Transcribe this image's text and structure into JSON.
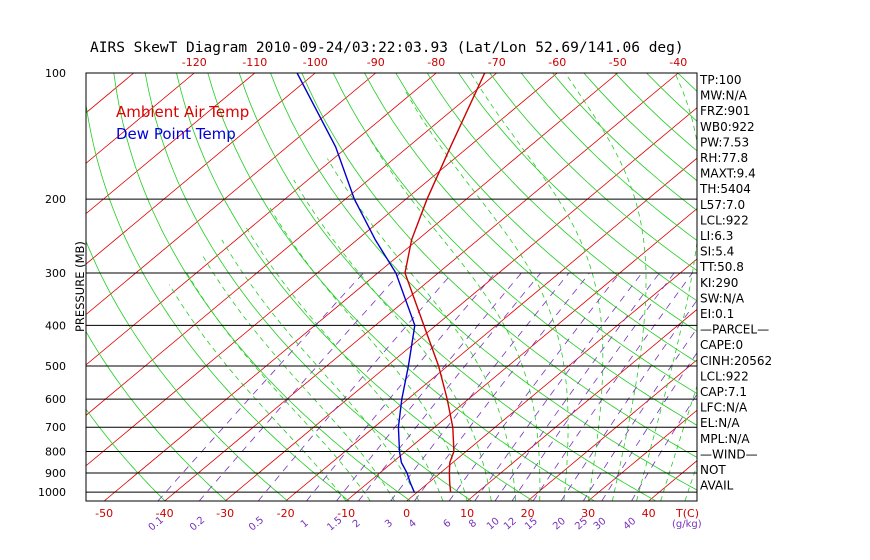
{
  "chart_data": {
    "type": "line",
    "title": "AIRS SkewT Diagram 2010-09-24/03:22:03.93 (Lat/Lon 52.69/141.06 deg)",
    "ylabel": "PRESSURE (MB)",
    "xlabel_bottom_temp": "T(C)",
    "xlabel_bottom_mixing": "(g/kg)",
    "legend": {
      "placement": "top-left",
      "items": [
        "Ambient Air Temp",
        "Dew Point Temp"
      ]
    },
    "grid": true,
    "y_scale": "log",
    "ylim": [
      1050,
      100
    ],
    "xlim_bottom": [
      -53,
      48
    ],
    "pressure_ticks": [
      100,
      200,
      300,
      400,
      500,
      600,
      700,
      800,
      900,
      1000
    ],
    "pressure_lines": [
      200,
      300,
      400,
      500,
      600,
      700,
      800,
      900,
      1000
    ],
    "temp_ticks_bottom": [
      "-50",
      "-40",
      "-30",
      "-20",
      "-10",
      "0",
      "10",
      "20",
      "30",
      "40"
    ],
    "temp_ticks_top": [
      "-120",
      "-110",
      "-100",
      "-90",
      "-80",
      "-70",
      "-60",
      "-50",
      "-40"
    ],
    "mixing_ratio_labels": [
      "0.1",
      "0.2",
      "0.5",
      "1",
      "1.5",
      "2",
      "3",
      "4",
      "6",
      "8",
      "10",
      "12",
      "15",
      "20",
      "25",
      "30",
      "40"
    ],
    "series": [
      {
        "name": "Ambient Air Temp",
        "color": "#cc0000",
        "points": [
          {
            "p": 1000,
            "t": 5.5
          },
          {
            "p": 950,
            "t": 3.5
          },
          {
            "p": 900,
            "t": 1.5
          },
          {
            "p": 850,
            "t": -0.5
          },
          {
            "p": 800,
            "t": -2.0
          },
          {
            "p": 700,
            "t": -7.0
          },
          {
            "p": 600,
            "t": -13.5
          },
          {
            "p": 500,
            "t": -21.5
          },
          {
            "p": 400,
            "t": -32.0
          },
          {
            "p": 300,
            "t": -45.5
          },
          {
            "p": 250,
            "t": -51.0
          },
          {
            "p": 200,
            "t": -56.5
          },
          {
            "p": 150,
            "t": -63.0
          },
          {
            "p": 100,
            "t": -72.0
          }
        ]
      },
      {
        "name": "Dew Point Temp",
        "color": "#0000cc",
        "points": [
          {
            "p": 1000,
            "t": -0.5
          },
          {
            "p": 950,
            "t": -3.0
          },
          {
            "p": 900,
            "t": -5.5
          },
          {
            "p": 850,
            "t": -8.5
          },
          {
            "p": 800,
            "t": -11.0
          },
          {
            "p": 700,
            "t": -16.0
          },
          {
            "p": 600,
            "t": -21.0
          },
          {
            "p": 500,
            "t": -26.5
          },
          {
            "p": 400,
            "t": -33.5
          },
          {
            "p": 300,
            "t": -47.0
          },
          {
            "p": 250,
            "t": -57.0
          },
          {
            "p": 200,
            "t": -68.5
          },
          {
            "p": 150,
            "t": -82.0
          },
          {
            "p": 100,
            "t": -103.0
          }
        ]
      }
    ],
    "indices": [
      "TP:100",
      "MW:N/A",
      "FRZ:901",
      "WB0:922",
      "PW:7.53",
      "RH:77.8",
      "MAXT:9.4",
      "TH:5404",
      "L57:7.0",
      "LCL:922",
      "LI:6.3",
      "SI:5.4",
      "TT:50.8",
      "KI:290",
      "SW:N/A",
      "EI:0.1",
      "—PARCEL—",
      "CAPE:0",
      "CINH:20562",
      "LCL:922",
      "CAP:7.1",
      "LFC:N/A",
      "EL:N/A",
      "MPL:N/A",
      "—WIND—",
      "NOT",
      "AVAIL"
    ],
    "colors": {
      "isotherm": "#dd0000",
      "dry_adiabat": "#22cc22",
      "moist_adiabat": "#22cc22",
      "mixing_ratio": "#7733bb",
      "isobar": "#000000",
      "temp_labels": "#cc0000",
      "mixing_labels": "#7733bb",
      "legend_temp": "#dd0000",
      "legend_dew": "#0000dd"
    }
  }
}
